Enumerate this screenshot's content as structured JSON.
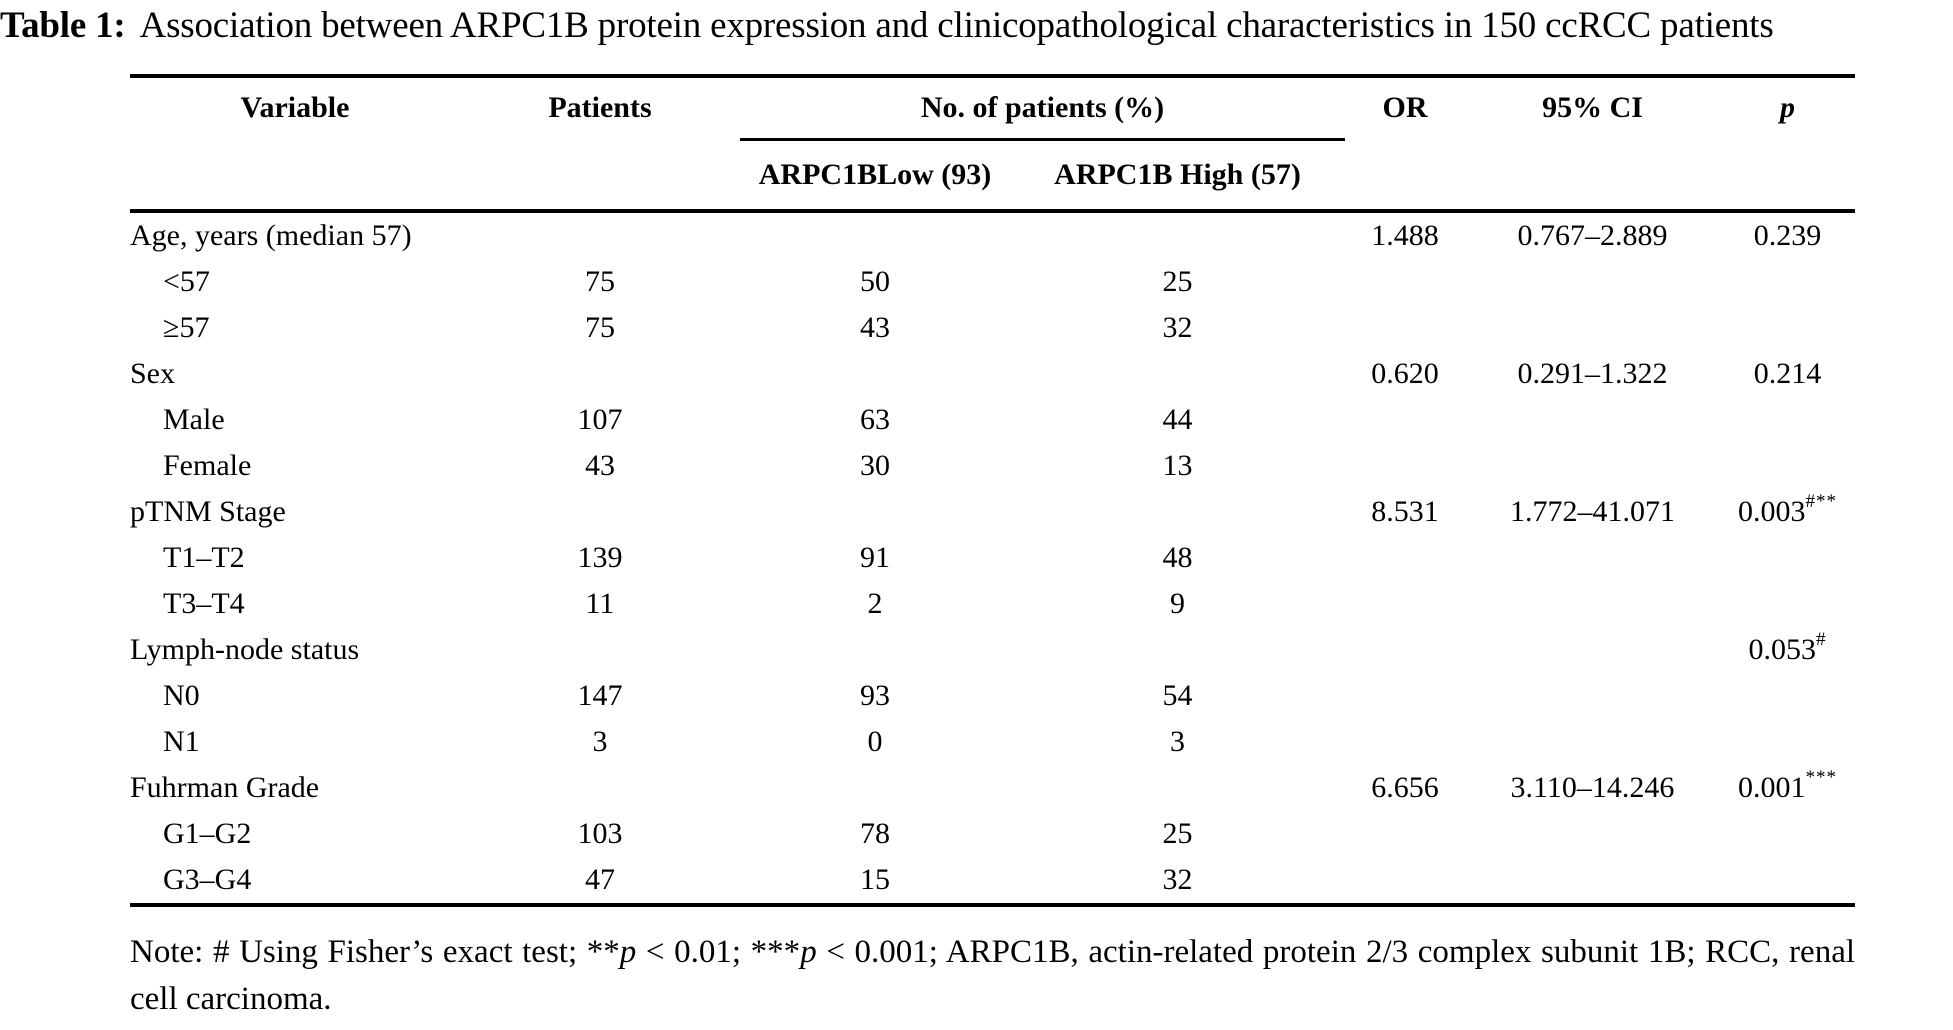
{
  "title": {
    "label": "Table 1:",
    "text": "Association between ARPC1B protein expression and clinicopathological characteristics in 150 ccRCC patients"
  },
  "table": {
    "headers": {
      "variable": "Variable",
      "patients": "Patients",
      "no_of_patients": "No. of patients (%)",
      "low": "ARPC1BLow (93)",
      "high": "ARPC1B High (57)",
      "or": "OR",
      "ci": "95% CI",
      "p": "p"
    },
    "rows": [
      {
        "variable": "Age, years (median 57)",
        "indent": false,
        "patients": "",
        "low": "",
        "high": "",
        "or": "1.488",
        "ci": "0.767–2.889",
        "p": "0.239",
        "p_sup": ""
      },
      {
        "variable": "<57",
        "indent": true,
        "patients": "75",
        "low": "50",
        "high": "25",
        "or": "",
        "ci": "",
        "p": "",
        "p_sup": ""
      },
      {
        "variable": "≥57",
        "indent": true,
        "patients": "75",
        "low": "43",
        "high": "32",
        "or": "",
        "ci": "",
        "p": "",
        "p_sup": ""
      },
      {
        "variable": "Sex",
        "indent": false,
        "patients": "",
        "low": "",
        "high": "",
        "or": "0.620",
        "ci": "0.291–1.322",
        "p": "0.214",
        "p_sup": ""
      },
      {
        "variable": "Male",
        "indent": true,
        "patients": "107",
        "low": "63",
        "high": "44",
        "or": "",
        "ci": "",
        "p": "",
        "p_sup": ""
      },
      {
        "variable": "Female",
        "indent": true,
        "patients": "43",
        "low": "30",
        "high": "13",
        "or": "",
        "ci": "",
        "p": "",
        "p_sup": ""
      },
      {
        "variable": "pTNM Stage",
        "indent": false,
        "patients": "",
        "low": "",
        "high": "",
        "or": "8.531",
        "ci": "1.772–41.071",
        "p": "0.003",
        "p_sup": "#**"
      },
      {
        "variable": "T1–T2",
        "indent": true,
        "patients": "139",
        "low": "91",
        "high": "48",
        "or": "",
        "ci": "",
        "p": "",
        "p_sup": ""
      },
      {
        "variable": "T3–T4",
        "indent": true,
        "patients": "11",
        "low": "2",
        "high": "9",
        "or": "",
        "ci": "",
        "p": "",
        "p_sup": ""
      },
      {
        "variable": "Lymph-node status",
        "indent": false,
        "patients": "",
        "low": "",
        "high": "",
        "or": "",
        "ci": "",
        "p": "0.053",
        "p_sup": "#"
      },
      {
        "variable": "N0",
        "indent": true,
        "patients": "147",
        "low": "93",
        "high": "54",
        "or": "",
        "ci": "",
        "p": "",
        "p_sup": ""
      },
      {
        "variable": "N1",
        "indent": true,
        "patients": "3",
        "low": "0",
        "high": "3",
        "or": "",
        "ci": "",
        "p": "",
        "p_sup": ""
      },
      {
        "variable": "Fuhrman Grade",
        "indent": false,
        "patients": "",
        "low": "",
        "high": "",
        "or": "6.656",
        "ci": "3.110–14.246",
        "p": "0.001",
        "p_sup": "***"
      },
      {
        "variable": "G1–G2",
        "indent": true,
        "patients": "103",
        "low": "78",
        "high": "25",
        "or": "",
        "ci": "",
        "p": "",
        "p_sup": ""
      },
      {
        "variable": "G3–G4",
        "indent": true,
        "patients": "47",
        "low": "15",
        "high": "32",
        "or": "",
        "ci": "",
        "p": "",
        "p_sup": ""
      }
    ]
  },
  "footnote": {
    "segments": [
      {
        "text": "Note: # Using Fisher’s exact test; **",
        "italic": false
      },
      {
        "text": "p",
        "italic": true
      },
      {
        "text": " < 0.01; ***",
        "italic": false
      },
      {
        "text": "p",
        "italic": true
      },
      {
        "text": " < 0.001; ARPC1B, actin-related protein 2/3 complex subunit 1B; RCC, renal cell carcinoma.",
        "italic": false
      }
    ]
  }
}
